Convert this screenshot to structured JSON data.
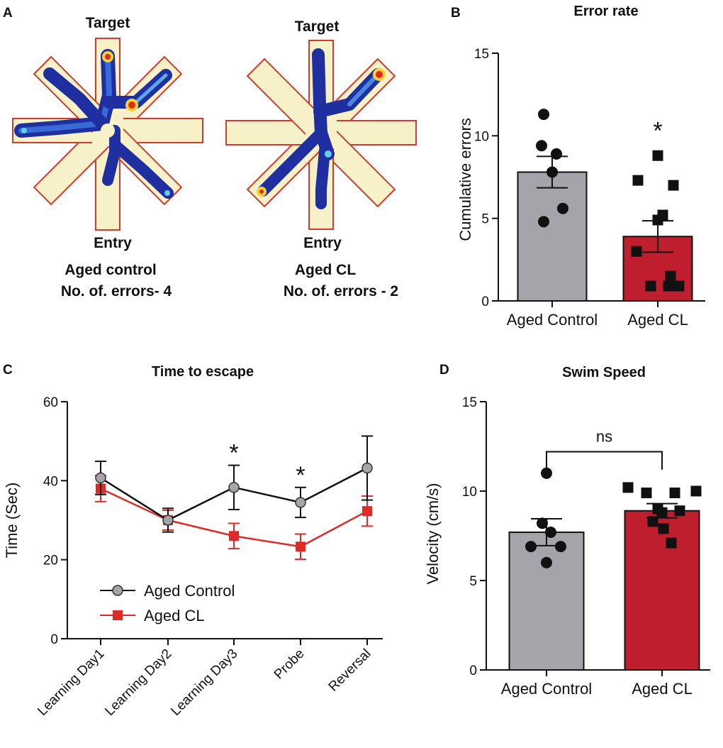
{
  "panel_a": {
    "label": "A",
    "colors": {
      "arm_fill": "#f6f1c8",
      "arm_edge": "#d33b2c",
      "trace": "#2340b0",
      "hot": "#e8271e"
    },
    "maps": [
      {
        "target": "Target",
        "entry": "Entry",
        "group": "Aged control",
        "errors": "No. of. errors- 4"
      },
      {
        "target": "Target",
        "entry": "Entry",
        "group": "Aged CL",
        "errors": "No. of. errors - 2"
      }
    ]
  },
  "chart_data": [
    {
      "panel": "B",
      "type": "bar",
      "title": "Error rate",
      "ylabel": "Cumulative errors",
      "xlabel": "",
      "ylim": [
        0,
        15
      ],
      "yticks": [
        "0",
        "5",
        "10",
        "15"
      ],
      "categories": [
        "Aged Control",
        "Aged CL"
      ],
      "values": [
        7.8,
        3.9
      ],
      "sem": [
        0.95,
        0.95
      ],
      "colors": [
        "#a4a4ab",
        "#be1e2d"
      ],
      "markers": [
        "circle",
        "square"
      ],
      "points": [
        [
          11.3,
          9.4,
          8.9,
          7.8,
          5.6,
          4.8
        ],
        [
          8.8,
          7.3,
          7.0,
          5.2,
          4.9,
          3.0,
          1.5,
          0.9,
          0.9,
          0.9
        ]
      ],
      "annotations": [
        {
          "text": "*",
          "category": "Aged CL"
        }
      ]
    },
    {
      "panel": "C",
      "type": "line",
      "title": "Time to escape",
      "ylabel": "Time  (Sec)",
      "xlabel": "",
      "ylim": [
        0,
        60
      ],
      "yticks": [
        "0",
        "20",
        "40",
        "60"
      ],
      "categories": [
        "Learning Day1",
        "Learning Day2",
        "Learning Day3",
        "Probe",
        "Reversal"
      ],
      "series": [
        {
          "name": "Aged Control",
          "values": [
            40.7,
            30.0,
            38.3,
            34.5,
            43.2
          ],
          "sem": [
            4.2,
            3.0,
            5.6,
            3.8,
            8.1
          ],
          "color": "#111111",
          "marker": "circle",
          "marker_color": "#a4a4ab"
        },
        {
          "name": "Aged CL",
          "values": [
            38.0,
            30.0,
            26.0,
            23.3,
            32.3
          ],
          "sem": [
            3.3,
            2.5,
            3.2,
            3.2,
            3.8
          ],
          "color": "#e02a25",
          "marker": "square",
          "marker_color": "#e02a25"
        }
      ],
      "annotations": [
        {
          "text": "*",
          "category": "Learning Day3"
        },
        {
          "text": "*",
          "category": "Probe"
        }
      ],
      "legend": "bottom-left"
    },
    {
      "panel": "D",
      "type": "bar",
      "title": "Swim Speed",
      "ylabel": "Velocity (cm/s)",
      "xlabel": "",
      "ylim": [
        0,
        15
      ],
      "yticks": [
        "0",
        "5",
        "10",
        "15"
      ],
      "categories": [
        "Aged Control",
        "Aged CL"
      ],
      "values": [
        7.7,
        8.9
      ],
      "sem": [
        0.75,
        0.4
      ],
      "colors": [
        "#a4a4ab",
        "#be1e2d"
      ],
      "markers": [
        "circle",
        "square"
      ],
      "points": [
        [
          11.0,
          8.2,
          7.7,
          6.9,
          6.9,
          6.0
        ],
        [
          10.2,
          10.0,
          9.9,
          9.9,
          9.0,
          8.9,
          8.8,
          8.3,
          7.9,
          7.1
        ]
      ],
      "significance": {
        "text": "ns"
      }
    }
  ]
}
